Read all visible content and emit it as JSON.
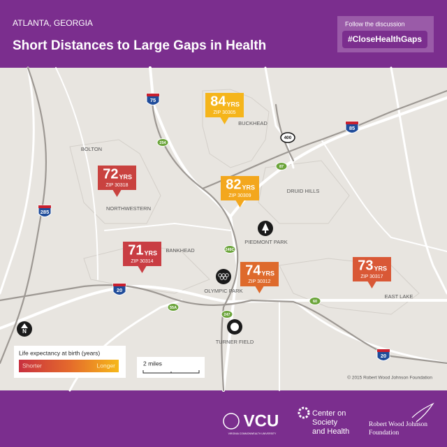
{
  "header": {
    "location": "ATLANTA, GEORGIA",
    "title": "Short Distances to Large Gaps in Health",
    "follow": "Follow the discussion",
    "hashtag": "#CloseHealthGaps"
  },
  "unit_label": "YRS",
  "markers": [
    {
      "value": 84,
      "zip": "ZIP 30305",
      "color": "#f5b51b"
    },
    {
      "value": 72,
      "zip": "ZIP 30318",
      "color": "#c9423f"
    },
    {
      "value": 82,
      "zip": "ZIP 30309",
      "color": "#f3a71d"
    },
    {
      "value": 71,
      "zip": "ZIP 30314",
      "color": "#c93d43"
    },
    {
      "value": 74,
      "zip": "ZIP 30312",
      "color": "#de6a2c"
    },
    {
      "value": 73,
      "zip": "ZIP 30317",
      "color": "#d95836"
    }
  ],
  "places": [
    "BUCKHEAD",
    "BOLTON",
    "DRUID HILLS",
    "NORTHWESTERN",
    "PIEDMONT PARK",
    "BANKHEAD",
    "OLYMPIC PARK",
    "TURNER FIELD",
    "EAST LAKE"
  ],
  "interstates": [
    "75",
    "85",
    "285",
    "20",
    "20"
  ],
  "state_routes": [
    "254",
    "87",
    "249C",
    "55A",
    "60",
    "247"
  ],
  "us_route": "400",
  "north": "N",
  "legend": {
    "title": "Life expectancy at birth (years)",
    "low": "Shorter",
    "high": "Longer"
  },
  "scale": "2 miles",
  "credit": "© 2015 Robert Wood Johnson Foundation",
  "footer": {
    "vcu": "VCU",
    "vcu_full": "VIRGINIA COMMONWEALTH UNIVERSITY",
    "center": [
      "Center on",
      "Society",
      "and Health"
    ],
    "rwjf": [
      "Robert Wood Johnson",
      "Foundation"
    ]
  }
}
